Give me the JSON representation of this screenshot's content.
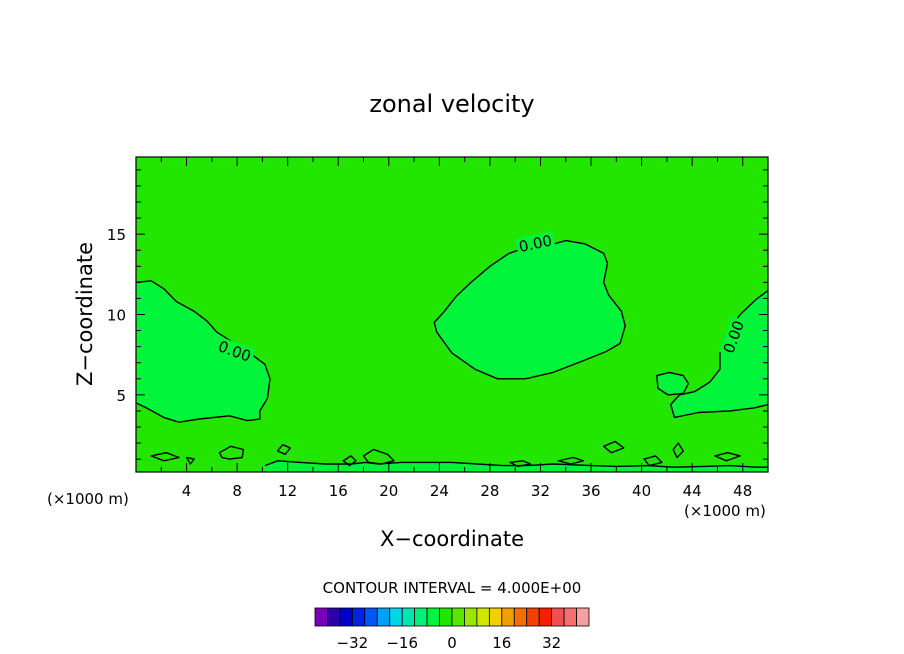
{
  "chart_data": {
    "type": "contour",
    "title": "zonal velocity",
    "xlabel": "X−coordinate",
    "ylabel": "Z−coordinate",
    "x_unit_left": "(×1000 m)",
    "x_unit_right": "(×1000 m)",
    "xlim": [
      0,
      50
    ],
    "ylim": [
      0.2,
      19.8
    ],
    "x_ticks": [
      4,
      8,
      12,
      16,
      20,
      24,
      28,
      32,
      36,
      40,
      44,
      48
    ],
    "y_ticks": [
      5,
      10,
      15
    ],
    "contour_interval_text": "CONTOUR INTERVAL = 4.000E+00",
    "contour_label": "0.00",
    "background_color": "#22e600",
    "region_color": "#00f53a",
    "colorbar": {
      "colors": [
        "#7a00b8",
        "#2a00a8",
        "#0000c8",
        "#0022e6",
        "#0058f2",
        "#00a0f2",
        "#00d8e8",
        "#00e8b0",
        "#00f07a",
        "#00f53a",
        "#22e600",
        "#5ae600",
        "#9ae600",
        "#d2e600",
        "#f2d000",
        "#f2a000",
        "#f27000",
        "#f24000",
        "#f22000",
        "#f25050",
        "#f27070",
        "#f2a0a0"
      ],
      "tick_labels": [
        "−32",
        "−16",
        "0",
        "16",
        "32"
      ],
      "tick_values": [
        -32,
        -16,
        0,
        16,
        32
      ],
      "range": [
        -44,
        44
      ]
    },
    "regions": [
      {
        "name": "left-lobe",
        "points": [
          [
            0,
            12
          ],
          [
            1.2,
            12.1
          ],
          [
            2.2,
            11.6
          ],
          [
            3.2,
            10.8
          ],
          [
            4.6,
            10.2
          ],
          [
            5.6,
            9.6
          ],
          [
            6.4,
            8.9
          ],
          [
            7.6,
            8.3
          ],
          [
            9.0,
            7.6
          ],
          [
            10.2,
            6.9
          ],
          [
            10.6,
            6.0
          ],
          [
            10.4,
            4.8
          ],
          [
            9.8,
            4.0
          ],
          [
            9.8,
            3.5
          ],
          [
            8.8,
            3.4
          ],
          [
            7.4,
            3.7
          ],
          [
            5.0,
            3.5
          ],
          [
            3.4,
            3.3
          ],
          [
            2.2,
            3.6
          ],
          [
            0.8,
            4.2
          ],
          [
            0,
            4.5
          ]
        ],
        "label": "0.00",
        "label_at": [
          7.8,
          7.7
        ],
        "label_angle": 20
      },
      {
        "name": "center-lobe",
        "points": [
          [
            23.6,
            9.5
          ],
          [
            23.8,
            8.9
          ],
          [
            25.0,
            7.6
          ],
          [
            26.8,
            6.6
          ],
          [
            28.6,
            6.0
          ],
          [
            30.8,
            6.0
          ],
          [
            33.0,
            6.4
          ],
          [
            35.3,
            7.1
          ],
          [
            37.2,
            7.7
          ],
          [
            38.3,
            8.2
          ],
          [
            38.7,
            9.3
          ],
          [
            38.4,
            10.2
          ],
          [
            37.4,
            11.2
          ],
          [
            37.0,
            12.0
          ],
          [
            37.3,
            13.2
          ],
          [
            37.0,
            13.8
          ],
          [
            35.5,
            14.4
          ],
          [
            34.0,
            14.6
          ],
          [
            32.2,
            14.2
          ],
          [
            31.0,
            14.2
          ],
          [
            29.5,
            13.8
          ],
          [
            28.0,
            13.0
          ],
          [
            26.5,
            12.0
          ],
          [
            25.3,
            11.1
          ],
          [
            24.4,
            10.2
          ]
        ],
        "label": "0.00",
        "label_at": [
          31.6,
          14.4
        ],
        "label_angle": -12
      },
      {
        "name": "right-lobe",
        "points": [
          [
            50,
            11.5
          ],
          [
            49.0,
            10.9
          ],
          [
            47.8,
            10.0
          ],
          [
            46.7,
            8.8
          ],
          [
            46.2,
            7.6
          ],
          [
            46.2,
            6.6
          ],
          [
            45.4,
            5.8
          ],
          [
            44.2,
            5.2
          ],
          [
            43.0,
            5.0
          ],
          [
            42.3,
            4.4
          ],
          [
            42.6,
            3.6
          ],
          [
            44.5,
            3.9
          ],
          [
            47.0,
            4.0
          ],
          [
            49.0,
            4.2
          ],
          [
            50,
            4.4
          ]
        ],
        "label": "0.00",
        "label_at": [
          47.3,
          8.6
        ],
        "label_angle": -70
      },
      {
        "name": "small-blob-a",
        "points": [
          [
            41.2,
            6.2
          ],
          [
            42.2,
            6.4
          ],
          [
            43.3,
            6.2
          ],
          [
            43.7,
            5.7
          ],
          [
            43.3,
            5.1
          ],
          [
            42.1,
            5.0
          ],
          [
            41.3,
            5.4
          ]
        ],
        "label": "",
        "label_at": [
          0,
          0
        ],
        "label_angle": 0
      },
      {
        "name": "near-surface-band",
        "points": [
          [
            10.0,
            0.2
          ],
          [
            10.2,
            0.6
          ],
          [
            11.2,
            0.9
          ],
          [
            13.0,
            0.8
          ],
          [
            15.0,
            0.7
          ],
          [
            17.0,
            0.7
          ],
          [
            18.2,
            0.8
          ],
          [
            19.2,
            0.7
          ],
          [
            21.0,
            0.8
          ],
          [
            23.0,
            0.8
          ],
          [
            25.0,
            0.8
          ],
          [
            27.0,
            0.7
          ],
          [
            29.0,
            0.6
          ],
          [
            31.0,
            0.6
          ],
          [
            33.0,
            0.7
          ],
          [
            36.0,
            0.6
          ],
          [
            38.0,
            0.55
          ],
          [
            40.5,
            0.6
          ],
          [
            42.5,
            0.5
          ],
          [
            45.0,
            0.55
          ],
          [
            47.0,
            0.6
          ],
          [
            49.0,
            0.5
          ],
          [
            50,
            0.5
          ],
          [
            50,
            0.2
          ]
        ],
        "label": "",
        "label_at": [
          0,
          0
        ],
        "label_angle": 0
      }
    ],
    "small_contours": [
      [
        [
          6.6,
          1.4
        ],
        [
          7.5,
          1.8
        ],
        [
          8.5,
          1.6
        ],
        [
          8.4,
          1.1
        ],
        [
          7.4,
          1.0
        ],
        [
          6.8,
          1.1
        ]
      ],
      [
        [
          11.2,
          1.5
        ],
        [
          11.6,
          1.9
        ],
        [
          12.2,
          1.7
        ],
        [
          11.8,
          1.3
        ]
      ],
      [
        [
          1.2,
          1.2
        ],
        [
          2.4,
          1.4
        ],
        [
          3.4,
          1.1
        ],
        [
          2.2,
          0.9
        ]
      ],
      [
        [
          4.0,
          1.1
        ],
        [
          4.6,
          1.0
        ],
        [
          4.3,
          0.7
        ]
      ],
      [
        [
          16.4,
          0.9
        ],
        [
          17.0,
          1.2
        ],
        [
          17.4,
          0.9
        ],
        [
          16.9,
          0.6
        ]
      ],
      [
        [
          18.0,
          1.2
        ],
        [
          18.8,
          1.6
        ],
        [
          19.9,
          1.3
        ],
        [
          20.4,
          0.9
        ],
        [
          19.4,
          0.7
        ],
        [
          18.4,
          0.8
        ]
      ],
      [
        [
          37.0,
          1.8
        ],
        [
          37.9,
          2.1
        ],
        [
          38.6,
          1.7
        ],
        [
          37.6,
          1.4
        ]
      ],
      [
        [
          40.2,
          1.0
        ],
        [
          41.1,
          1.2
        ],
        [
          41.6,
          0.8
        ],
        [
          40.6,
          0.6
        ]
      ],
      [
        [
          42.5,
          1.6
        ],
        [
          42.9,
          2.0
        ],
        [
          43.3,
          1.5
        ],
        [
          42.8,
          1.1
        ]
      ],
      [
        [
          45.8,
          1.2
        ],
        [
          46.8,
          1.4
        ],
        [
          47.8,
          1.2
        ],
        [
          46.7,
          0.9
        ]
      ],
      [
        [
          29.6,
          0.8
        ],
        [
          30.6,
          0.9
        ],
        [
          31.2,
          0.7
        ],
        [
          30.2,
          0.55
        ]
      ],
      [
        [
          33.4,
          0.9
        ],
        [
          34.6,
          1.1
        ],
        [
          35.4,
          0.9
        ],
        [
          34.4,
          0.7
        ]
      ]
    ]
  }
}
